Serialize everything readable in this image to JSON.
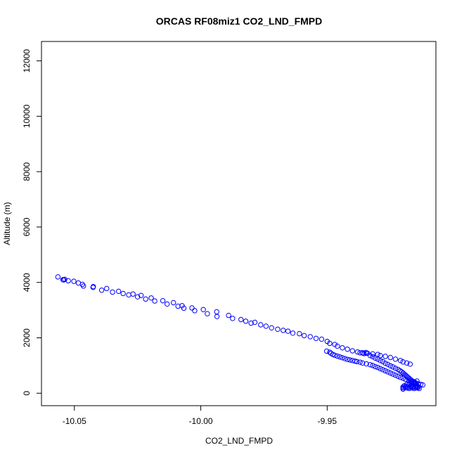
{
  "chart_data": {
    "type": "scatter",
    "title": "ORCAS RF08miz1 CO2_LND_FMPD",
    "xlabel": "CO2_LND_FMPD",
    "ylabel": "Altitude (m)",
    "xlim": [
      -10.063,
      -9.907
    ],
    "ylim": [
      -450,
      12700
    ],
    "xticks": [
      {
        "value": -10.05,
        "label": "-10.05"
      },
      {
        "value": -10.0,
        "label": "-10.00"
      },
      {
        "value": -9.95,
        "label": "-9.95"
      }
    ],
    "yticks": [
      {
        "value": 0,
        "label": "0"
      },
      {
        "value": 2000,
        "label": "2000"
      },
      {
        "value": 4000,
        "label": "4000"
      },
      {
        "value": 6000,
        "label": "6000"
      },
      {
        "value": 8000,
        "label": "8000"
      },
      {
        "value": 10000,
        "label": "10000"
      },
      {
        "value": 12000,
        "label": "12000"
      }
    ],
    "grid": false,
    "legend": false,
    "marker": "open-circle",
    "point_color": "#0000ff",
    "series": [
      {
        "x": [
          -10.0565,
          -10.0545,
          -10.0542,
          -10.0538,
          -10.0524,
          -10.0502,
          -10.0484,
          -10.0468,
          -10.0464,
          -10.0426,
          -10.0425,
          -10.0392,
          -10.0372,
          -10.0349,
          -10.0325,
          -10.0307,
          -10.0285,
          -10.0268,
          -10.025,
          -10.0236,
          -10.0218,
          -10.0196,
          -10.0182,
          -10.015,
          -10.0133,
          -10.0108,
          -10.009,
          -10.0074,
          -10.0067,
          -10.0035,
          -10.0024,
          -9.999,
          -9.9974,
          -9.9937,
          -9.9936,
          -9.989,
          -9.9874,
          -9.9841,
          -9.9822,
          -9.9801,
          -9.9786,
          -9.9763,
          -9.9742,
          -9.972,
          -9.9696,
          -9.9674,
          -9.9655,
          -9.9636,
          -9.961,
          -9.9591,
          -9.9567,
          -9.9544,
          -9.9522,
          -9.95,
          -9.949,
          -9.947,
          -9.946,
          -9.944,
          -9.942,
          -9.94,
          -9.938,
          -9.936,
          -9.9345,
          -9.932,
          -9.93,
          -9.929,
          -9.927,
          -9.925,
          -9.923,
          -9.921,
          -9.92,
          -9.9185,
          -9.9172
        ],
        "y": [
          4200,
          4100,
          4090,
          4110,
          4060,
          4040,
          3980,
          3930,
          3870,
          3820,
          3850,
          3720,
          3780,
          3650,
          3680,
          3600,
          3550,
          3580,
          3480,
          3530,
          3400,
          3440,
          3330,
          3340,
          3220,
          3270,
          3140,
          3160,
          3070,
          3080,
          2980,
          3020,
          2870,
          2940,
          2770,
          2810,
          2700,
          2660,
          2600,
          2530,
          2560,
          2470,
          2420,
          2360,
          2310,
          2270,
          2240,
          2170,
          2150,
          2080,
          2040,
          1980,
          1950,
          1870,
          1800,
          1760,
          1700,
          1640,
          1590,
          1530,
          1490,
          1460,
          1440,
          1420,
          1400,
          1360,
          1330,
          1290,
          1230,
          1180,
          1130,
          1090,
          1050
        ]
      },
      {
        "x": [
          -9.9502,
          -9.949,
          -9.9485,
          -9.9478,
          -9.947,
          -9.946,
          -9.945,
          -9.944,
          -9.943,
          -9.942,
          -9.941,
          -9.94,
          -9.939,
          -9.9382,
          -9.937,
          -9.936,
          -9.9345,
          -9.933,
          -9.932,
          -9.931,
          -9.93,
          -9.929,
          -9.928,
          -9.927,
          -9.926,
          -9.925,
          -9.924,
          -9.923,
          -9.922,
          -9.921,
          -9.92,
          -9.919,
          -9.9178,
          -9.9168,
          -9.916,
          -9.915,
          -9.914,
          -9.913,
          -9.9122
        ],
        "y": [
          1520,
          1480,
          1440,
          1400,
          1370,
          1340,
          1310,
          1280,
          1250,
          1220,
          1200,
          1180,
          1160,
          1140,
          1120,
          1090,
          1060,
          1030,
          1000,
          960,
          930,
          890,
          850,
          810,
          770,
          730,
          690,
          650,
          610,
          570,
          540,
          500,
          470,
          440,
          400,
          370,
          340,
          320,
          300
        ]
      },
      {
        "x": [
          -9.937,
          -9.936,
          -9.9354,
          -9.9347,
          -9.934,
          -9.933,
          -9.932,
          -9.931,
          -9.93,
          -9.929,
          -9.928,
          -9.927,
          -9.926,
          -9.925,
          -9.924,
          -9.923,
          -9.922,
          -9.9212,
          -9.9205,
          -9.92,
          -9.9195,
          -9.919,
          -9.9185,
          -9.918,
          -9.9175,
          -9.917,
          -9.9165,
          -9.916,
          -9.9155,
          -9.915,
          -9.9147,
          -9.9143,
          -9.914,
          -9.9136
        ],
        "y": [
          1460,
          1450,
          1430,
          1470,
          1440,
          1360,
          1320,
          1270,
          1230,
          1180,
          1140,
          1080,
          1040,
          990,
          950,
          900,
          860,
          810,
          770,
          730,
          690,
          650,
          610,
          570,
          530,
          490,
          450,
          410,
          370,
          330,
          290,
          250,
          210,
          170
        ]
      },
      {
        "x": [
          -9.92,
          -9.92,
          -9.92,
          -9.9195,
          -9.9192,
          -9.9188,
          -9.9184,
          -9.918,
          -9.9176,
          -9.9172,
          -9.9168,
          -9.9164,
          -9.916,
          -9.9156,
          -9.9152,
          -9.9148,
          -9.9144,
          -9.914,
          -9.9185,
          -9.9175,
          -9.9165,
          -9.9155,
          -9.9145,
          -9.9178,
          -9.9168,
          -9.9158,
          -9.9148
        ],
        "y": [
          150,
          190,
          230,
          270,
          210,
          250,
          190,
          230,
          170,
          210,
          250,
          190,
          230,
          170,
          210,
          250,
          190,
          220,
          320,
          350,
          380,
          410,
          440,
          290,
          260,
          230,
          200
        ]
      }
    ]
  }
}
